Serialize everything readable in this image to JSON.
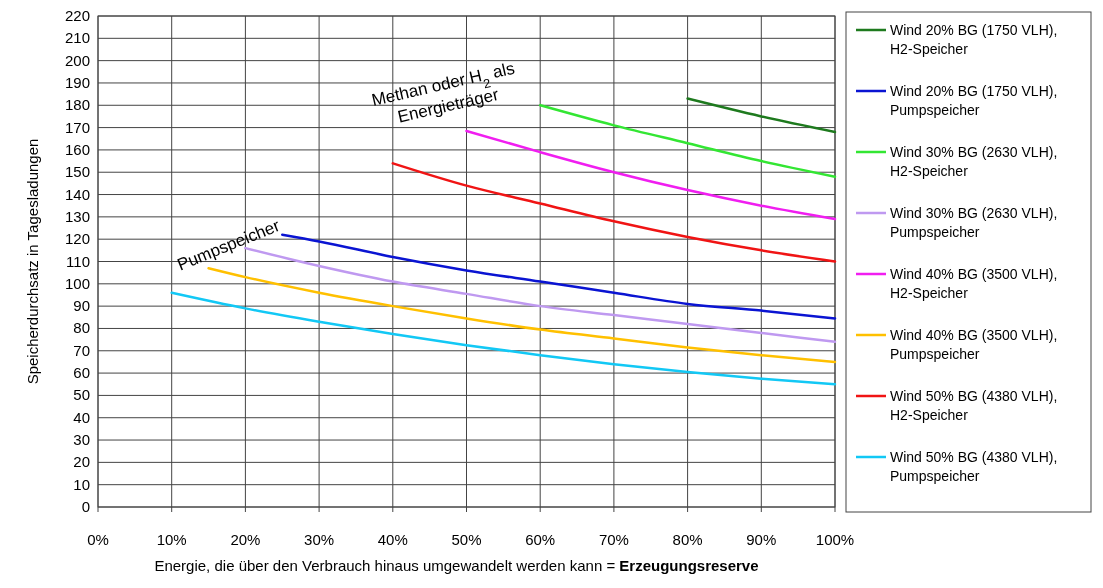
{
  "chart_data": {
    "type": "line",
    "xlabel": "Energie, die über den Verbrauch hinaus umgewandelt werden kann = **Erzeugungsreserve**",
    "ylabel": "Speicherdurchsatz in Tagesladungen",
    "xlim": [
      0,
      100
    ],
    "xticks": [
      {
        "value": 0,
        "label": "0%"
      },
      {
        "value": 10,
        "label": "10%"
      },
      {
        "value": 20,
        "label": "20%"
      },
      {
        "value": 30,
        "label": "30%"
      },
      {
        "value": 40,
        "label": "40%"
      },
      {
        "value": 50,
        "label": "50%"
      },
      {
        "value": 60,
        "label": "60%"
      },
      {
        "value": 70,
        "label": "70%"
      },
      {
        "value": 80,
        "label": "80%"
      },
      {
        "value": 90,
        "label": "90%"
      },
      {
        "value": 100,
        "label": "100%"
      }
    ],
    "ylim": [
      0,
      220
    ],
    "yticks": [
      0,
      10,
      20,
      30,
      40,
      50,
      60,
      70,
      80,
      90,
      100,
      110,
      120,
      130,
      140,
      150,
      160,
      170,
      180,
      190,
      200,
      210,
      220
    ],
    "grid": true,
    "legend": "right",
    "line_style": "solid",
    "marker": "none",
    "annotations": [
      "Pumpspeicher",
      "Methan oder H$_{2}$  als Energieträger"
    ],
    "series": [
      {
        "name": "Wind 20% BG (1750 VLH), H2-Speicher",
        "color": "#1e7a1e",
        "x": [
          80,
          90,
          100
        ],
        "values": [
          183,
          175,
          168
        ]
      },
      {
        "name": "Wind 20% BG (1750 VLH), Pumpspeicher",
        "color": "#0a14d2",
        "x": [
          25,
          30,
          40,
          50,
          60,
          70,
          80,
          90,
          100
        ],
        "values": [
          122,
          119,
          112,
          106,
          101,
          96,
          91,
          88,
          84.5
        ]
      },
      {
        "name": "Wind 30% BG (2630 VLH), H2-Speicher",
        "color": "#33e633",
        "x": [
          60,
          70,
          80,
          90,
          100
        ],
        "values": [
          180,
          171,
          163,
          155,
          148
        ]
      },
      {
        "name": "Wind 30% BG (2630 VLH), Pumpspeicher",
        "color": "#bf99f0",
        "x": [
          20,
          30,
          40,
          50,
          60,
          70,
          80,
          90,
          100
        ],
        "values": [
          116,
          108,
          101,
          95.5,
          90,
          86,
          82,
          78,
          74
        ]
      },
      {
        "name": "Wind 40% BG (3500 VLH), H2-Speicher",
        "color": "#f01ef0",
        "x": [
          50,
          60,
          70,
          80,
          90,
          100
        ],
        "values": [
          168.5,
          159,
          150,
          142,
          135,
          129
        ]
      },
      {
        "name": "Wind 40% BG (3500 VLH), Pumpspeicher",
        "color": "#ffc000",
        "x": [
          15,
          20,
          30,
          40,
          50,
          60,
          70,
          80,
          90,
          100
        ],
        "values": [
          107,
          103,
          96,
          90,
          84.5,
          79.5,
          75.5,
          71.5,
          68,
          65
        ]
      },
      {
        "name": "Wind 50% BG (4380 VLH), H2-Speicher",
        "color": "#f01414",
        "x": [
          40,
          50,
          60,
          70,
          80,
          90,
          100
        ],
        "values": [
          154,
          144,
          136,
          128,
          121,
          115,
          110
        ]
      },
      {
        "name": "Wind 50% BG (4380 VLH), Pumpspeicher",
        "color": "#12c8f5",
        "x": [
          10,
          20,
          30,
          40,
          50,
          60,
          70,
          80,
          90,
          100
        ],
        "values": [
          96,
          89,
          83,
          77.5,
          72.5,
          68,
          64,
          60.5,
          57.5,
          55
        ]
      }
    ]
  }
}
